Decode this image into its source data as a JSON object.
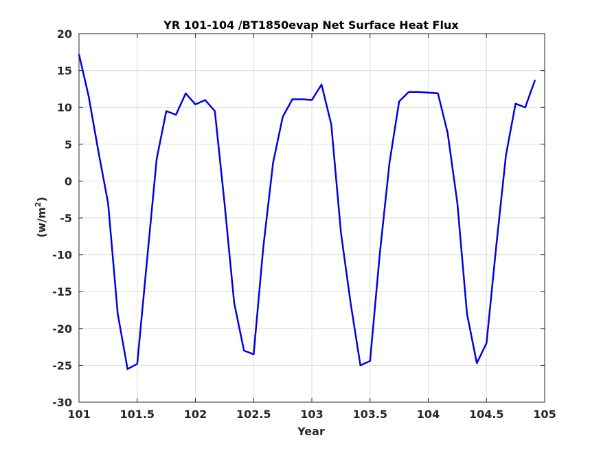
{
  "chart_data": {
    "type": "line",
    "title": "YR 101-104 /BT1850evap Net Surface Heat Flux",
    "xlabel": "Year",
    "ylabel_base": "(w/m",
    "ylabel_sup": "2",
    "ylabel_close": ")",
    "xlim": [
      101,
      105
    ],
    "ylim": [
      -30,
      20
    ],
    "xticks": [
      101,
      101.5,
      102,
      102.5,
      103,
      103.5,
      104,
      104.5,
      105
    ],
    "xtick_labels": [
      "101",
      "101.5",
      "102",
      "102.5",
      "103",
      "103.5",
      "104",
      "104.5",
      "105"
    ],
    "yticks": [
      -30,
      -25,
      -20,
      -15,
      -10,
      -5,
      0,
      5,
      10,
      15,
      20
    ],
    "ytick_labels": [
      "-30",
      "-25",
      "-20",
      "-15",
      "-10",
      "-5",
      "0",
      "5",
      "10",
      "15",
      "20"
    ],
    "grid": true,
    "colors": {
      "line": "#0000e6",
      "grid": "#dcdcdc",
      "axis": "#262626"
    },
    "series": [
      {
        "x": [
          101.0,
          101.083,
          101.167,
          101.25,
          101.333,
          101.417,
          101.5,
          101.583,
          101.667,
          101.75,
          101.833,
          101.917,
          102.0,
          102.083,
          102.167,
          102.25,
          102.333,
          102.417,
          102.5,
          102.583,
          102.667,
          102.75,
          102.833,
          102.917,
          103.0,
          103.083,
          103.167,
          103.25,
          103.333,
          103.417,
          103.5,
          103.583,
          103.667,
          103.75,
          103.833,
          103.917,
          104.0,
          104.083,
          104.167,
          104.25,
          104.333,
          104.417,
          104.5,
          104.583,
          104.667,
          104.75,
          104.833,
          104.917
        ],
        "y": [
          17.2,
          11.5,
          4.0,
          -3.0,
          -18.0,
          -25.5,
          -24.8,
          -11.0,
          3.0,
          9.5,
          9.0,
          11.9,
          10.4,
          11.0,
          9.5,
          -3.0,
          -16.5,
          -23.0,
          -23.5,
          -9.0,
          2.5,
          8.7,
          11.1,
          11.1,
          11.0,
          13.1,
          7.7,
          -7.0,
          -16.5,
          -25.0,
          -24.4,
          -10.0,
          2.5,
          10.8,
          12.1,
          12.1,
          12.0,
          11.9,
          6.5,
          -3.0,
          -18.0,
          -24.7,
          -22.0,
          -9.0,
          3.5,
          10.5,
          10.0,
          13.7
        ]
      }
    ]
  }
}
